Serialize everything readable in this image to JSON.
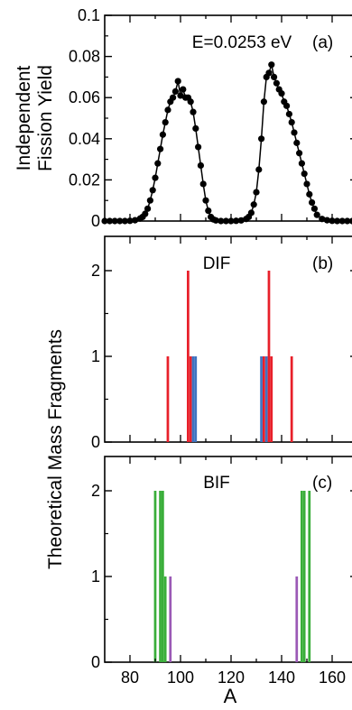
{
  "x_axis": {
    "label": "A",
    "range": [
      70,
      170
    ],
    "ticks": [
      80,
      100,
      120,
      140,
      160
    ],
    "tick_labels": [
      "80",
      "100",
      "120",
      "140",
      "160"
    ]
  },
  "colors": {
    "red": "#e8202a",
    "blue": "#3f73c0",
    "green": "#3aae3a",
    "purple": "#9b59b6",
    "black": "#000000"
  },
  "chart_data": [
    {
      "panel": "a",
      "type": "line",
      "annotation": "E=0.0253 eV",
      "panel_label": "(a)",
      "ylabel_line1": "Independent",
      "ylabel_line2": "Fission Yield",
      "ylim": [
        0,
        0.1
      ],
      "yticks": [
        0,
        0.02,
        0.04,
        0.06,
        0.08,
        0.1
      ],
      "ytick_labels": [
        "0",
        "0.02",
        "0.04",
        "0.06",
        "0.08",
        "0.1"
      ],
      "series": [
        {
          "color": "black",
          "x": [
            70,
            72,
            74,
            76,
            78,
            80,
            82,
            84,
            85,
            86,
            87,
            88,
            89,
            90,
            91,
            92,
            93,
            94,
            95,
            96,
            97,
            98,
            99,
            100,
            101,
            102,
            103,
            104,
            105,
            106,
            107,
            108,
            109,
            110,
            111,
            112,
            113,
            114,
            116,
            118,
            120,
            122,
            124,
            126,
            127,
            128,
            129,
            130,
            131,
            132,
            133,
            134,
            135,
            136,
            137,
            138,
            139,
            140,
            141,
            142,
            143,
            144,
            145,
            146,
            147,
            148,
            149,
            150,
            151,
            152,
            153,
            154,
            156,
            158,
            160,
            162,
            164,
            166,
            168
          ],
          "y": [
            0,
            0,
            0,
            0,
            0,
            0.0001,
            0.0004,
            0.0012,
            0.002,
            0.0035,
            0.006,
            0.01,
            0.015,
            0.021,
            0.028,
            0.035,
            0.042,
            0.048,
            0.054,
            0.058,
            0.06,
            0.063,
            0.068,
            0.061,
            0.064,
            0.06,
            0.06,
            0.058,
            0.053,
            0.045,
            0.036,
            0.027,
            0.018,
            0.01,
            0.005,
            0.002,
            0.0008,
            0.0003,
            0,
            0,
            0,
            0.0001,
            0.0003,
            0.001,
            0.002,
            0.004,
            0.008,
            0.014,
            0.025,
            0.04,
            0.058,
            0.07,
            0.072,
            0.076,
            0.07,
            0.067,
            0.064,
            0.062,
            0.058,
            0.056,
            0.052,
            0.048,
            0.043,
            0.038,
            0.033,
            0.028,
            0.023,
            0.018,
            0.013,
            0.009,
            0.006,
            0.003,
            0.001,
            0.0004,
            0.0001,
            0,
            0,
            0,
            0
          ]
        }
      ]
    },
    {
      "panel": "b",
      "type": "bar",
      "annotation": "DIF",
      "panel_label": "(b)",
      "ylim": [
        0,
        2.4
      ],
      "yticks": [
        0,
        1,
        2
      ],
      "ytick_labels": [
        "0",
        "1",
        "2"
      ],
      "bars": [
        {
          "x": 95,
          "value": 1,
          "color": "red"
        },
        {
          "x": 103,
          "value": 2,
          "color": "red"
        },
        {
          "x": 104,
          "value": 1,
          "color": "red"
        },
        {
          "x": 105,
          "value": 1,
          "color": "blue"
        },
        {
          "x": 106,
          "value": 1,
          "color": "blue"
        },
        {
          "x": 132,
          "value": 1,
          "color": "blue"
        },
        {
          "x": 133,
          "value": 1,
          "color": "red"
        },
        {
          "x": 134,
          "value": 1,
          "color": "blue"
        },
        {
          "x": 135,
          "value": 2,
          "color": "red"
        },
        {
          "x": 136,
          "value": 1,
          "color": "red"
        },
        {
          "x": 144,
          "value": 1,
          "color": "red"
        }
      ]
    },
    {
      "panel": "c",
      "type": "bar",
      "annotation": "BIF",
      "panel_label": "(c)",
      "ylim": [
        0,
        2.4
      ],
      "yticks": [
        0,
        1,
        2
      ],
      "ytick_labels": [
        "0",
        "1",
        "2"
      ],
      "bars": [
        {
          "x": 90,
          "value": 2,
          "color": "green"
        },
        {
          "x": 92,
          "value": 2,
          "color": "green"
        },
        {
          "x": 93,
          "value": 2,
          "color": "green"
        },
        {
          "x": 94,
          "value": 1,
          "color": "green"
        },
        {
          "x": 96,
          "value": 1,
          "color": "purple"
        },
        {
          "x": 146,
          "value": 1,
          "color": "purple"
        },
        {
          "x": 148,
          "value": 2,
          "color": "green"
        },
        {
          "x": 149,
          "value": 2,
          "color": "green"
        },
        {
          "x": 151,
          "value": 2,
          "color": "green"
        }
      ]
    }
  ],
  "shared_ylabel": "Theoretical Mass Fragments"
}
